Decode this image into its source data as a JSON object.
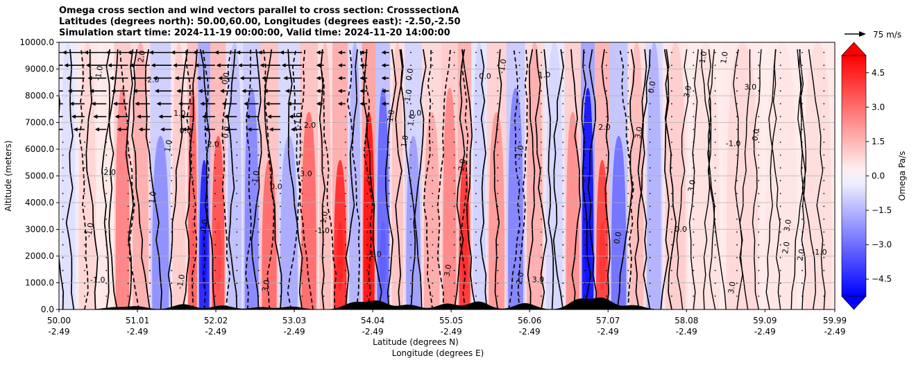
{
  "chart_data": {
    "type": "heatmap",
    "title_lines": [
      "Omega cross section and wind vectors parallel to cross section: CrosssectionA",
      "Latitudes (degrees north): 50.00,60.00, Longitudes (degrees east): -2.50,-2.50",
      "Simulation start time: 2024-11-19 00:00:00, Valid time: 2024-11-20 14:00:00"
    ],
    "ylabel": "Altitude (meters)",
    "xlabel_line1": "Latitude (degrees N)",
    "xlabel_line2": "Longitude (degrees E)",
    "ylim": [
      0,
      10000
    ],
    "xlim": [
      50.0,
      59.99
    ],
    "y_ticks": [
      "0.0",
      "1000.0",
      "2000.0",
      "3000.0",
      "4000.0",
      "5000.0",
      "6000.0",
      "7000.0",
      "8000.0",
      "9000.0",
      "10000.0"
    ],
    "x_ticks": [
      {
        "lat": "50.00",
        "lon": "-2.49"
      },
      {
        "lat": "51.01",
        "lon": "-2.49"
      },
      {
        "lat": "52.02",
        "lon": "-2.49"
      },
      {
        "lat": "53.03",
        "lon": "-2.49"
      },
      {
        "lat": "54.04",
        "lon": "-2.49"
      },
      {
        "lat": "55.05",
        "lon": "-2.49"
      },
      {
        "lat": "56.06",
        "lon": "-2.49"
      },
      {
        "lat": "57.07",
        "lon": "-2.49"
      },
      {
        "lat": "58.08",
        "lon": "-2.49"
      },
      {
        "lat": "59.09",
        "lon": "-2.49"
      },
      {
        "lat": "59.99",
        "lon": "-2.49"
      }
    ],
    "colorbar": {
      "label": "Omega Pa/s",
      "range": [
        -5.25,
        5.25
      ],
      "ticks": [
        "4.5",
        "3.0",
        "1.5",
        "0.0",
        "−1.5",
        "−3.0",
        "−4.5"
      ],
      "tick_values": [
        4.5,
        3.0,
        1.5,
        0.0,
        -1.5,
        -3.0,
        -4.5
      ],
      "low_color": "#0000ff",
      "high_color": "#ff0000"
    },
    "quiver_key": "75 m/s",
    "omega_bands": [
      {
        "lat": 50.08,
        "omega": -0.4
      },
      {
        "lat": 50.38,
        "omega": 0.6
      },
      {
        "lat": 50.62,
        "omega": 0.2
      },
      {
        "lat": 50.8,
        "omega": 2.5
      },
      {
        "lat": 51.05,
        "omega": 1.5
      },
      {
        "lat": 51.3,
        "omega": -2.2
      },
      {
        "lat": 51.58,
        "omega": 0.8
      },
      {
        "lat": 51.72,
        "omega": 3.2
      },
      {
        "lat": 51.86,
        "omega": -4.6
      },
      {
        "lat": 52.04,
        "omega": 3.6
      },
      {
        "lat": 52.26,
        "omega": -1.1
      },
      {
        "lat": 52.48,
        "omega": -2.4
      },
      {
        "lat": 52.7,
        "omega": 3.0
      },
      {
        "lat": 52.95,
        "omega": -1.6
      },
      {
        "lat": 53.25,
        "omega": 3.0
      },
      {
        "lat": 53.42,
        "omega": 1.2
      },
      {
        "lat": 53.62,
        "omega": 4.4
      },
      {
        "lat": 53.82,
        "omega": -1.4
      },
      {
        "lat": 53.98,
        "omega": 5.0
      },
      {
        "lat": 54.18,
        "omega": -3.1
      },
      {
        "lat": 54.35,
        "omega": 1.0
      },
      {
        "lat": 54.55,
        "omega": -1.9
      },
      {
        "lat": 54.8,
        "omega": 1.6
      },
      {
        "lat": 55.05,
        "omega": 2.4
      },
      {
        "lat": 55.22,
        "omega": 4.2
      },
      {
        "lat": 55.4,
        "omega": -0.7
      },
      {
        "lat": 55.62,
        "omega": 2.0
      },
      {
        "lat": 55.9,
        "omega": -2.5
      },
      {
        "lat": 56.1,
        "omega": 1.5
      },
      {
        "lat": 56.4,
        "omega": -0.6
      },
      {
        "lat": 56.62,
        "omega": 2.2
      },
      {
        "lat": 56.82,
        "omega": -5.0
      },
      {
        "lat": 56.98,
        "omega": 4.0
      },
      {
        "lat": 57.2,
        "omega": -2.9
      },
      {
        "lat": 57.45,
        "omega": 1.2
      },
      {
        "lat": 57.65,
        "omega": -1.4
      },
      {
        "lat": 57.9,
        "omega": 0.8
      },
      {
        "lat": 58.3,
        "omega": 0.35
      },
      {
        "lat": 58.8,
        "omega": 0.55
      },
      {
        "lat": 59.3,
        "omega": 0.25
      },
      {
        "lat": 59.8,
        "omega": 0.45
      }
    ],
    "contour_labels": [
      "0.0",
      "1.0",
      "2.0",
      "3.0",
      "-1.0",
      "-2.0"
    ],
    "terrain_peaks": [
      {
        "lat": 50.7,
        "height": 80
      },
      {
        "lat": 51.0,
        "height": 120
      },
      {
        "lat": 51.6,
        "height": 200
      },
      {
        "lat": 52.1,
        "height": 150
      },
      {
        "lat": 52.6,
        "height": 90
      },
      {
        "lat": 53.0,
        "height": 110
      },
      {
        "lat": 53.8,
        "height": 260
      },
      {
        "lat": 54.1,
        "height": 320
      },
      {
        "lat": 54.5,
        "height": 180
      },
      {
        "lat": 55.0,
        "height": 220
      },
      {
        "lat": 55.4,
        "height": 300
      },
      {
        "lat": 56.0,
        "height": 240
      },
      {
        "lat": 56.7,
        "height": 380
      },
      {
        "lat": 57.0,
        "height": 420
      },
      {
        "lat": 57.4,
        "height": 160
      }
    ]
  }
}
